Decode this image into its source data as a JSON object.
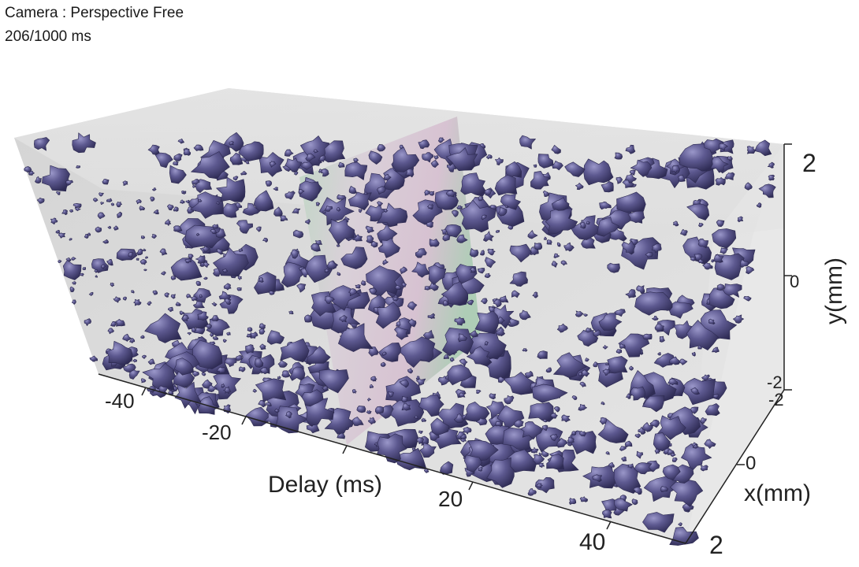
{
  "overlay": {
    "camera_label": "Camera : Perspective Free",
    "time_label": "206/1000 ms"
  },
  "axes": {
    "delay": {
      "label": "Delay (ms)",
      "ticks": [
        "-40",
        "-20",
        "20",
        "40"
      ]
    },
    "x": {
      "label": "x(mm)",
      "ticks": [
        "-2",
        "0",
        "2"
      ]
    },
    "y": {
      "label": "y(mm)",
      "ticks": [
        "2",
        "0",
        "-2"
      ]
    }
  },
  "colors": {
    "isosurface": "#5a5689",
    "isosurface_dark": "#2e2b52",
    "isosurface_light": "#8f8cc0",
    "box_face": "#d9d9d9",
    "slice_green": "#cfe0d0",
    "slice_pink": "#e2cfda"
  }
}
